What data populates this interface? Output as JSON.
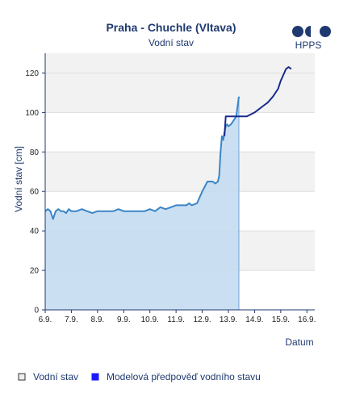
{
  "header": {
    "logo_text": "HPPS"
  },
  "chart_data": {
    "type": "line",
    "title": "Praha - Chuchle (Vltava)",
    "subtitle": "Vodní stav",
    "ylabel": "Vodní stav [cm]",
    "xlabel": "Datum",
    "ylim": [
      0,
      130
    ],
    "yticks": [
      0,
      20,
      40,
      60,
      80,
      100,
      120
    ],
    "xlim": [
      0,
      10.3
    ],
    "xticks": [
      {
        "day": 0,
        "label": "6.9."
      },
      {
        "day": 1,
        "label": "7.9."
      },
      {
        "day": 2,
        "label": "8.9."
      },
      {
        "day": 3,
        "label": "9.9."
      },
      {
        "day": 4,
        "label": "10.9."
      },
      {
        "day": 5,
        "label": "11.9."
      },
      {
        "day": 6,
        "label": "12.9."
      },
      {
        "day": 7,
        "label": "13.9."
      },
      {
        "day": 8,
        "label": "14.9."
      },
      {
        "day": 9,
        "label": "15.9."
      },
      {
        "day": 10,
        "label": "16.9."
      }
    ],
    "grid": "horizontal-bands",
    "series": [
      {
        "name": "Vodní stav",
        "color": "#3a85c6",
        "fill": "#c5dcf2",
        "x": [
          0,
          0.1,
          0.2,
          0.3,
          0.4,
          0.5,
          0.6,
          0.7,
          0.8,
          0.9,
          1.0,
          1.2,
          1.4,
          1.6,
          1.8,
          2.0,
          2.2,
          2.4,
          2.6,
          2.8,
          3.0,
          3.2,
          3.4,
          3.6,
          3.8,
          4.0,
          4.2,
          4.4,
          4.6,
          4.8,
          5.0,
          5.2,
          5.4,
          5.5,
          5.6,
          5.8,
          6.0,
          6.2,
          6.4,
          6.5,
          6.6,
          6.65,
          6.7,
          6.75,
          6.8,
          6.85,
          6.9,
          6.95,
          7.0,
          7.1,
          7.2,
          7.3,
          7.4
        ],
        "y": [
          50,
          51,
          50,
          46,
          50,
          51,
          50,
          50,
          49,
          51,
          50,
          50,
          51,
          50,
          49,
          50,
          50,
          50,
          50,
          51,
          50,
          50,
          50,
          50,
          50,
          51,
          50,
          52,
          51,
          52,
          53,
          53,
          53,
          54,
          53,
          54,
          60,
          65,
          65,
          64,
          65,
          68,
          80,
          88,
          86,
          90,
          93,
          94,
          93,
          94,
          96,
          98,
          108
        ]
      },
      {
        "name": "Modelová předpověď vodního stavu",
        "color": "#1a2a8a",
        "x": [
          6.85,
          6.9,
          7.0,
          7.4,
          7.7,
          8.0,
          8.3,
          8.5,
          8.7,
          8.9,
          9.0,
          9.1,
          9.2,
          9.3,
          9.4
        ],
        "y": [
          88,
          98,
          98,
          98,
          98,
          100,
          103,
          105,
          108,
          112,
          116,
          119,
          122,
          123,
          122
        ]
      }
    ],
    "legend_position": "bottom"
  }
}
